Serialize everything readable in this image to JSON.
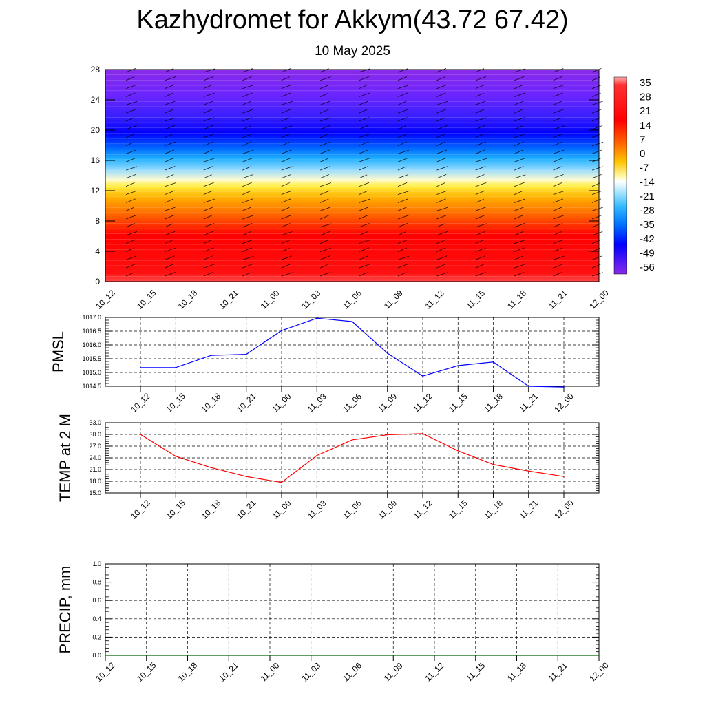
{
  "header": {
    "title": "Kazhydromet for Akkym(43.72 67.42)",
    "subtitle": "10 May 2025"
  },
  "chart_data": [
    {
      "type": "heatmap",
      "title": "",
      "ylabel": "",
      "ylim": [
        0,
        28
      ],
      "y_ticks": [
        "0",
        "4",
        "8",
        "12",
        "16",
        "20",
        "24",
        "28"
      ],
      "x_ticks": [
        "10_12",
        "10_15",
        "10_18",
        "10_21",
        "11_00",
        "11_03",
        "11_06",
        "11_09",
        "11_12",
        "11_15",
        "11_18",
        "11_21",
        "12_00"
      ],
      "colorbar_labels": [
        "35",
        "28",
        "21",
        "14",
        "7",
        "0",
        "-7",
        "-14",
        "-21",
        "-28",
        "-35",
        "-42",
        "-49",
        "-56"
      ],
      "color_stops": [
        "#ff3b3b",
        "#ff0000",
        "#ff7a00",
        "#ffd700",
        "#fff6a0",
        "#ffffff",
        "#6fd0ff",
        "#0060ff",
        "#0000ff",
        "#7a22ff"
      ],
      "wind_barbs": true
    },
    {
      "type": "line",
      "ylabel": "PMSL",
      "ylim": [
        1014.5,
        1017.0
      ],
      "y_ticks": [
        "1014.5",
        "1015.0",
        "1015.5",
        "1016.0",
        "1016.5",
        "1017.0"
      ],
      "x_ticks": [
        "10_12",
        "10_15",
        "10_18",
        "10_21",
        "11_00",
        "11_03",
        "11_06",
        "11_09",
        "11_12",
        "11_15",
        "11_18",
        "11_21",
        "12_00"
      ],
      "series": [
        {
          "color": "#0000ff",
          "values": [
            1015.18,
            1015.18,
            1015.62,
            1015.66,
            1016.52,
            1016.97,
            1016.85,
            1015.7,
            1014.87,
            1015.25,
            1015.38,
            1014.5,
            1014.47
          ]
        }
      ],
      "grid": true
    },
    {
      "type": "line",
      "ylabel": "TEMP at 2 M",
      "ylim": [
        15.0,
        33.0
      ],
      "y_ticks": [
        "15.0",
        "18.0",
        "21.0",
        "24.0",
        "27.0",
        "30.0",
        "33.0"
      ],
      "x_ticks": [
        "10_12",
        "10_15",
        "10_18",
        "10_21",
        "11_00",
        "11_03",
        "11_06",
        "11_09",
        "11_12",
        "11_15",
        "11_18",
        "11_21",
        "12_00"
      ],
      "series": [
        {
          "color": "#ff0000",
          "values": [
            30.0,
            24.4,
            21.5,
            19.2,
            17.7,
            24.6,
            28.6,
            29.9,
            30.2,
            25.8,
            22.3,
            20.6,
            19.2
          ]
        }
      ],
      "grid": true
    },
    {
      "type": "line",
      "ylabel": "PRECIP, mm",
      "ylim": [
        0.0,
        1.0
      ],
      "y_ticks": [
        "0.0",
        "0.2",
        "0.4",
        "0.6",
        "0.8",
        "1.0"
      ],
      "x_ticks": [
        "10_12",
        "10_15",
        "10_18",
        "10_21",
        "11_00",
        "11_03",
        "11_06",
        "11_09",
        "11_12",
        "11_15",
        "11_18",
        "11_21",
        "12_00"
      ],
      "series": [
        {
          "color": "#006400",
          "values": [
            0,
            0,
            0,
            0,
            0,
            0,
            0,
            0,
            0,
            0,
            0,
            0,
            0
          ]
        }
      ],
      "grid": true
    }
  ]
}
